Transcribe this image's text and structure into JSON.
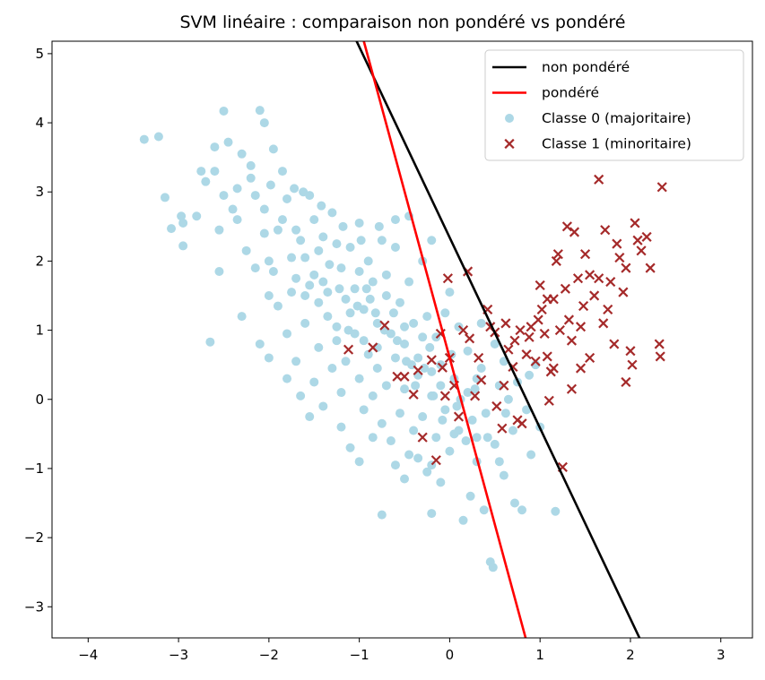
{
  "chart_data": {
    "type": "scatter",
    "title": "SVM linéaire : comparaison non pondéré vs pondéré",
    "xlabel": "",
    "ylabel": "",
    "xlim": [
      -4.4,
      3.35
    ],
    "ylim": [
      -3.45,
      5.18
    ],
    "xticks": [
      -4,
      -3,
      -2,
      -1,
      0,
      1,
      2,
      3
    ],
    "yticks": [
      -3,
      -2,
      -1,
      0,
      1,
      2,
      3,
      4,
      5
    ],
    "grid": false,
    "legend_position": "top-right",
    "lines": [
      {
        "name": "non pondéré",
        "color": "#000000",
        "points": [
          [
            -1.03,
            5.18
          ],
          [
            2.1,
            -3.45
          ]
        ]
      },
      {
        "name": "pondéré",
        "color": "#ff0000",
        "points": [
          [
            -0.95,
            5.18
          ],
          [
            0.84,
            -3.45
          ]
        ]
      }
    ],
    "series": [
      {
        "name": "Classe 0 (majoritaire)",
        "marker": "circle",
        "color": "#add8e6",
        "points": [
          [
            -3.38,
            3.76
          ],
          [
            -3.22,
            3.8
          ],
          [
            -3.15,
            2.92
          ],
          [
            -3.08,
            2.47
          ],
          [
            -2.97,
            2.65
          ],
          [
            -2.95,
            2.22
          ],
          [
            -2.8,
            2.65
          ],
          [
            -2.75,
            3.3
          ],
          [
            -2.65,
            0.83
          ],
          [
            -2.6,
            3.65
          ],
          [
            -2.55,
            2.45
          ],
          [
            -2.55,
            1.85
          ],
          [
            -2.5,
            4.17
          ],
          [
            -2.45,
            3.72
          ],
          [
            -2.4,
            2.75
          ],
          [
            -2.35,
            3.05
          ],
          [
            -2.3,
            3.55
          ],
          [
            -2.25,
            2.15
          ],
          [
            -2.2,
            3.38
          ],
          [
            -2.15,
            2.95
          ],
          [
            -2.1,
            4.18
          ],
          [
            -2.05,
            4.0
          ],
          [
            -2.05,
            2.4
          ],
          [
            -2.0,
            1.5
          ],
          [
            -1.95,
            3.62
          ],
          [
            -1.85,
            3.3
          ],
          [
            -1.8,
            2.9
          ],
          [
            -1.75,
            2.05
          ],
          [
            -1.7,
            1.75
          ],
          [
            -1.65,
            2.3
          ],
          [
            -1.6,
            1.5
          ],
          [
            -1.55,
            2.95
          ],
          [
            -1.5,
            2.6
          ],
          [
            -1.45,
            2.15
          ],
          [
            -1.4,
            1.7
          ],
          [
            -1.35,
            1.2
          ],
          [
            -1.3,
            2.7
          ],
          [
            -1.25,
            2.25
          ],
          [
            -1.2,
            1.9
          ],
          [
            -1.15,
            1.45
          ],
          [
            -1.1,
            2.2
          ],
          [
            -1.05,
            1.6
          ],
          [
            -1.0,
            2.55
          ],
          [
            -0.95,
            1.3
          ],
          [
            -0.9,
            2.0
          ],
          [
            -0.85,
            1.7
          ],
          [
            -0.8,
            1.1
          ],
          [
            -0.75,
            2.3
          ],
          [
            -0.7,
            1.5
          ],
          [
            -0.65,
            0.95
          ],
          [
            -0.6,
            2.2
          ],
          [
            -0.55,
            1.4
          ],
          [
            -0.5,
            0.8
          ],
          [
            -0.45,
            1.7
          ],
          [
            -0.4,
            1.1
          ],
          [
            -0.35,
            0.6
          ],
          [
            -0.3,
            2.0
          ],
          [
            -0.25,
            1.2
          ],
          [
            -0.2,
            0.4
          ],
          [
            -0.15,
            0.9
          ],
          [
            -1.9,
            1.35
          ],
          [
            -1.8,
            0.95
          ],
          [
            -1.7,
            0.55
          ],
          [
            -1.6,
            1.1
          ],
          [
            -1.5,
            0.25
          ],
          [
            -1.45,
            0.75
          ],
          [
            -1.3,
            0.45
          ],
          [
            -1.25,
            0.85
          ],
          [
            -1.2,
            0.1
          ],
          [
            -1.15,
            0.55
          ],
          [
            -1.05,
            0.95
          ],
          [
            -1.0,
            0.3
          ],
          [
            -0.95,
            -0.15
          ],
          [
            -0.9,
            0.65
          ],
          [
            -0.85,
            0.05
          ],
          [
            -0.8,
            0.45
          ],
          [
            -0.75,
            -0.35
          ],
          [
            -0.7,
            0.2
          ],
          [
            -0.65,
            -0.6
          ],
          [
            -0.6,
            0.6
          ],
          [
            -0.55,
            -0.2
          ],
          [
            -0.5,
            0.15
          ],
          [
            -0.45,
            -0.8
          ],
          [
            -0.4,
            -0.45
          ],
          [
            -0.35,
            0.35
          ],
          [
            -0.3,
            -0.25
          ],
          [
            -0.25,
            -1.05
          ],
          [
            -0.2,
            0.05
          ],
          [
            -0.15,
            -0.55
          ],
          [
            -0.1,
            0.5
          ],
          [
            -0.05,
            -0.15
          ],
          [
            0.0,
            -0.75
          ],
          [
            0.05,
            0.3
          ],
          [
            0.1,
            -0.45
          ],
          [
            0.15,
            -1.75
          ],
          [
            0.2,
            0.1
          ],
          [
            0.25,
            -0.3
          ],
          [
            0.3,
            -0.9
          ],
          [
            0.35,
            0.45
          ],
          [
            0.4,
            -0.2
          ],
          [
            0.45,
            -2.35
          ],
          [
            0.48,
            -2.43
          ],
          [
            0.5,
            -0.65
          ],
          [
            0.55,
            0.2
          ],
          [
            0.6,
            -1.1
          ],
          [
            0.65,
            0.0
          ],
          [
            0.7,
            -0.45
          ],
          [
            0.72,
            -1.5
          ],
          [
            0.8,
            -1.6
          ],
          [
            0.85,
            -0.15
          ],
          [
            0.9,
            -0.8
          ],
          [
            0.95,
            0.5
          ],
          [
            1.0,
            -0.4
          ],
          [
            1.17,
            -1.62
          ],
          [
            -0.75,
            -1.67
          ],
          [
            -0.2,
            -1.65
          ],
          [
            0.23,
            -1.4
          ],
          [
            0.38,
            -1.6
          ],
          [
            -0.1,
            -1.2
          ],
          [
            0.55,
            -0.9
          ],
          [
            -2.95,
            2.55
          ],
          [
            -2.6,
            3.3
          ],
          [
            -2.5,
            2.95
          ],
          [
            -2.35,
            2.6
          ],
          [
            -2.15,
            1.9
          ],
          [
            -2.05,
            2.75
          ],
          [
            -1.95,
            1.85
          ],
          [
            -1.9,
            2.45
          ],
          [
            -1.75,
            1.55
          ],
          [
            -1.6,
            2.05
          ],
          [
            -1.5,
            1.8
          ],
          [
            -1.4,
            2.35
          ],
          [
            -1.35,
            1.55
          ],
          [
            -1.25,
            1.05
          ],
          [
            -1.1,
            1.25
          ],
          [
            -1.0,
            1.85
          ],
          [
            -0.95,
            0.85
          ],
          [
            -0.88,
            1.45
          ],
          [
            -0.8,
            0.75
          ],
          [
            -0.7,
            1.8
          ],
          [
            -0.62,
            1.25
          ],
          [
            -0.5,
            1.05
          ],
          [
            -0.42,
            0.5
          ],
          [
            -0.3,
            0.9
          ],
          [
            -0.22,
            0.75
          ],
          [
            -0.1,
            0.2
          ],
          [
            0.02,
            0.65
          ],
          [
            0.12,
            0.0
          ],
          [
            0.28,
            0.15
          ],
          [
            0.42,
            -0.55
          ],
          [
            -2.0,
            2.0
          ],
          [
            -1.85,
            2.6
          ],
          [
            -1.7,
            2.45
          ],
          [
            -1.55,
            1.65
          ],
          [
            -1.45,
            1.4
          ],
          [
            -1.33,
            1.95
          ],
          [
            -1.22,
            1.6
          ],
          [
            -1.12,
            1.0
          ],
          [
            -1.02,
            1.35
          ],
          [
            -0.92,
            1.6
          ],
          [
            -0.82,
            1.25
          ],
          [
            -0.72,
            1.0
          ],
          [
            -0.58,
            0.85
          ],
          [
            -0.48,
            0.55
          ],
          [
            -0.38,
            0.2
          ],
          [
            -0.28,
            0.45
          ],
          [
            -0.18,
            0.05
          ],
          [
            -0.08,
            -0.3
          ],
          [
            0.08,
            -0.1
          ],
          [
            0.18,
            -0.6
          ],
          [
            -2.3,
            1.2
          ],
          [
            -2.1,
            0.8
          ],
          [
            -2.0,
            0.6
          ],
          [
            -1.8,
            0.3
          ],
          [
            -1.65,
            0.05
          ],
          [
            -1.55,
            -0.25
          ],
          [
            -1.4,
            -0.1
          ],
          [
            -1.2,
            -0.4
          ],
          [
            -1.1,
            -0.7
          ],
          [
            -1.0,
            -0.9
          ],
          [
            -0.85,
            -0.55
          ],
          [
            -0.6,
            -0.95
          ],
          [
            -0.5,
            -1.15
          ],
          [
            -0.35,
            -0.85
          ],
          [
            -0.2,
            -0.95
          ],
          [
            0.05,
            -0.5
          ],
          [
            0.3,
            -0.55
          ],
          [
            0.62,
            -0.2
          ],
          [
            0.75,
            0.25
          ],
          [
            0.88,
            0.35
          ],
          [
            -2.7,
            3.15
          ],
          [
            -2.2,
            3.2
          ],
          [
            -1.98,
            3.1
          ],
          [
            -1.72,
            3.05
          ],
          [
            -1.62,
            3.0
          ],
          [
            -1.42,
            2.8
          ],
          [
            -1.18,
            2.5
          ],
          [
            -0.98,
            2.3
          ],
          [
            -0.78,
            2.5
          ],
          [
            -0.6,
            2.6
          ],
          [
            -0.45,
            2.65
          ],
          [
            -0.2,
            2.3
          ],
          [
            0.0,
            1.55
          ],
          [
            0.1,
            1.05
          ],
          [
            0.2,
            0.7
          ],
          [
            0.35,
            1.1
          ],
          [
            0.5,
            0.8
          ],
          [
            0.6,
            0.55
          ],
          [
            -0.05,
            1.25
          ],
          [
            0.3,
            0.3
          ]
        ]
      },
      {
        "name": "Classe 1 (minoritaire)",
        "marker": "x",
        "color": "#a52a2a",
        "points": [
          [
            -1.12,
            0.72
          ],
          [
            -0.85,
            0.75
          ],
          [
            -0.72,
            1.07
          ],
          [
            -0.58,
            0.33
          ],
          [
            -0.5,
            0.33
          ],
          [
            -0.4,
            0.07
          ],
          [
            -0.35,
            0.42
          ],
          [
            -0.3,
            -0.55
          ],
          [
            -0.2,
            0.57
          ],
          [
            -0.15,
            -0.88
          ],
          [
            -0.08,
            0.46
          ],
          [
            -0.05,
            0.05
          ],
          [
            -0.02,
            1.75
          ],
          [
            0.1,
            -0.25
          ],
          [
            0.2,
            1.85
          ],
          [
            0.22,
            0.88
          ],
          [
            0.28,
            0.05
          ],
          [
            0.35,
            0.28
          ],
          [
            0.42,
            1.3
          ],
          [
            0.5,
            0.97
          ],
          [
            0.52,
            -0.1
          ],
          [
            0.58,
            -0.42
          ],
          [
            0.62,
            1.1
          ],
          [
            0.65,
            0.72
          ],
          [
            0.7,
            0.47
          ],
          [
            0.75,
            -0.3
          ],
          [
            0.8,
            -0.35
          ],
          [
            0.85,
            0.65
          ],
          [
            0.9,
            1.05
          ],
          [
            0.95,
            0.55
          ],
          [
            1.0,
            1.65
          ],
          [
            1.02,
            1.3
          ],
          [
            1.05,
            0.95
          ],
          [
            1.08,
            0.62
          ],
          [
            1.1,
            -0.02
          ],
          [
            1.12,
            0.4
          ],
          [
            1.15,
            1.45
          ],
          [
            1.18,
            2.0
          ],
          [
            1.22,
            1.0
          ],
          [
            1.25,
            -0.98
          ],
          [
            1.28,
            1.6
          ],
          [
            1.3,
            2.5
          ],
          [
            1.32,
            1.15
          ],
          [
            1.35,
            0.15
          ],
          [
            1.38,
            2.42
          ],
          [
            1.42,
            1.75
          ],
          [
            1.45,
            0.45
          ],
          [
            1.48,
            1.35
          ],
          [
            1.5,
            2.1
          ],
          [
            1.55,
            0.6
          ],
          [
            1.6,
            1.5
          ],
          [
            1.65,
            3.18
          ],
          [
            1.7,
            1.1
          ],
          [
            1.72,
            2.45
          ],
          [
            1.78,
            1.7
          ],
          [
            1.82,
            0.8
          ],
          [
            1.85,
            2.25
          ],
          [
            1.88,
            2.05
          ],
          [
            1.92,
            1.55
          ],
          [
            1.95,
            1.9
          ],
          [
            2.0,
            0.7
          ],
          [
            2.02,
            0.5
          ],
          [
            2.05,
            2.55
          ],
          [
            2.08,
            2.3
          ],
          [
            2.12,
            2.15
          ],
          [
            2.18,
            2.35
          ],
          [
            2.22,
            1.9
          ],
          [
            2.32,
            0.8
          ],
          [
            2.33,
            0.62
          ],
          [
            2.35,
            3.07
          ],
          [
            1.15,
            0.45
          ],
          [
            1.35,
            0.85
          ],
          [
            1.45,
            1.05
          ],
          [
            1.55,
            1.8
          ],
          [
            1.65,
            1.75
          ],
          [
            1.75,
            1.3
          ],
          [
            1.95,
            0.25
          ],
          [
            0.98,
            1.15
          ],
          [
            1.08,
            1.45
          ],
          [
            1.2,
            2.1
          ],
          [
            0.88,
            0.9
          ],
          [
            0.78,
            1.0
          ],
          [
            0.72,
            0.85
          ],
          [
            0.6,
            0.2
          ],
          [
            0.45,
            1.05
          ],
          [
            0.32,
            0.6
          ],
          [
            0.15,
            1.0
          ],
          [
            -0.1,
            0.95
          ],
          [
            0.0,
            0.6
          ],
          [
            0.05,
            0.2
          ]
        ]
      }
    ]
  }
}
